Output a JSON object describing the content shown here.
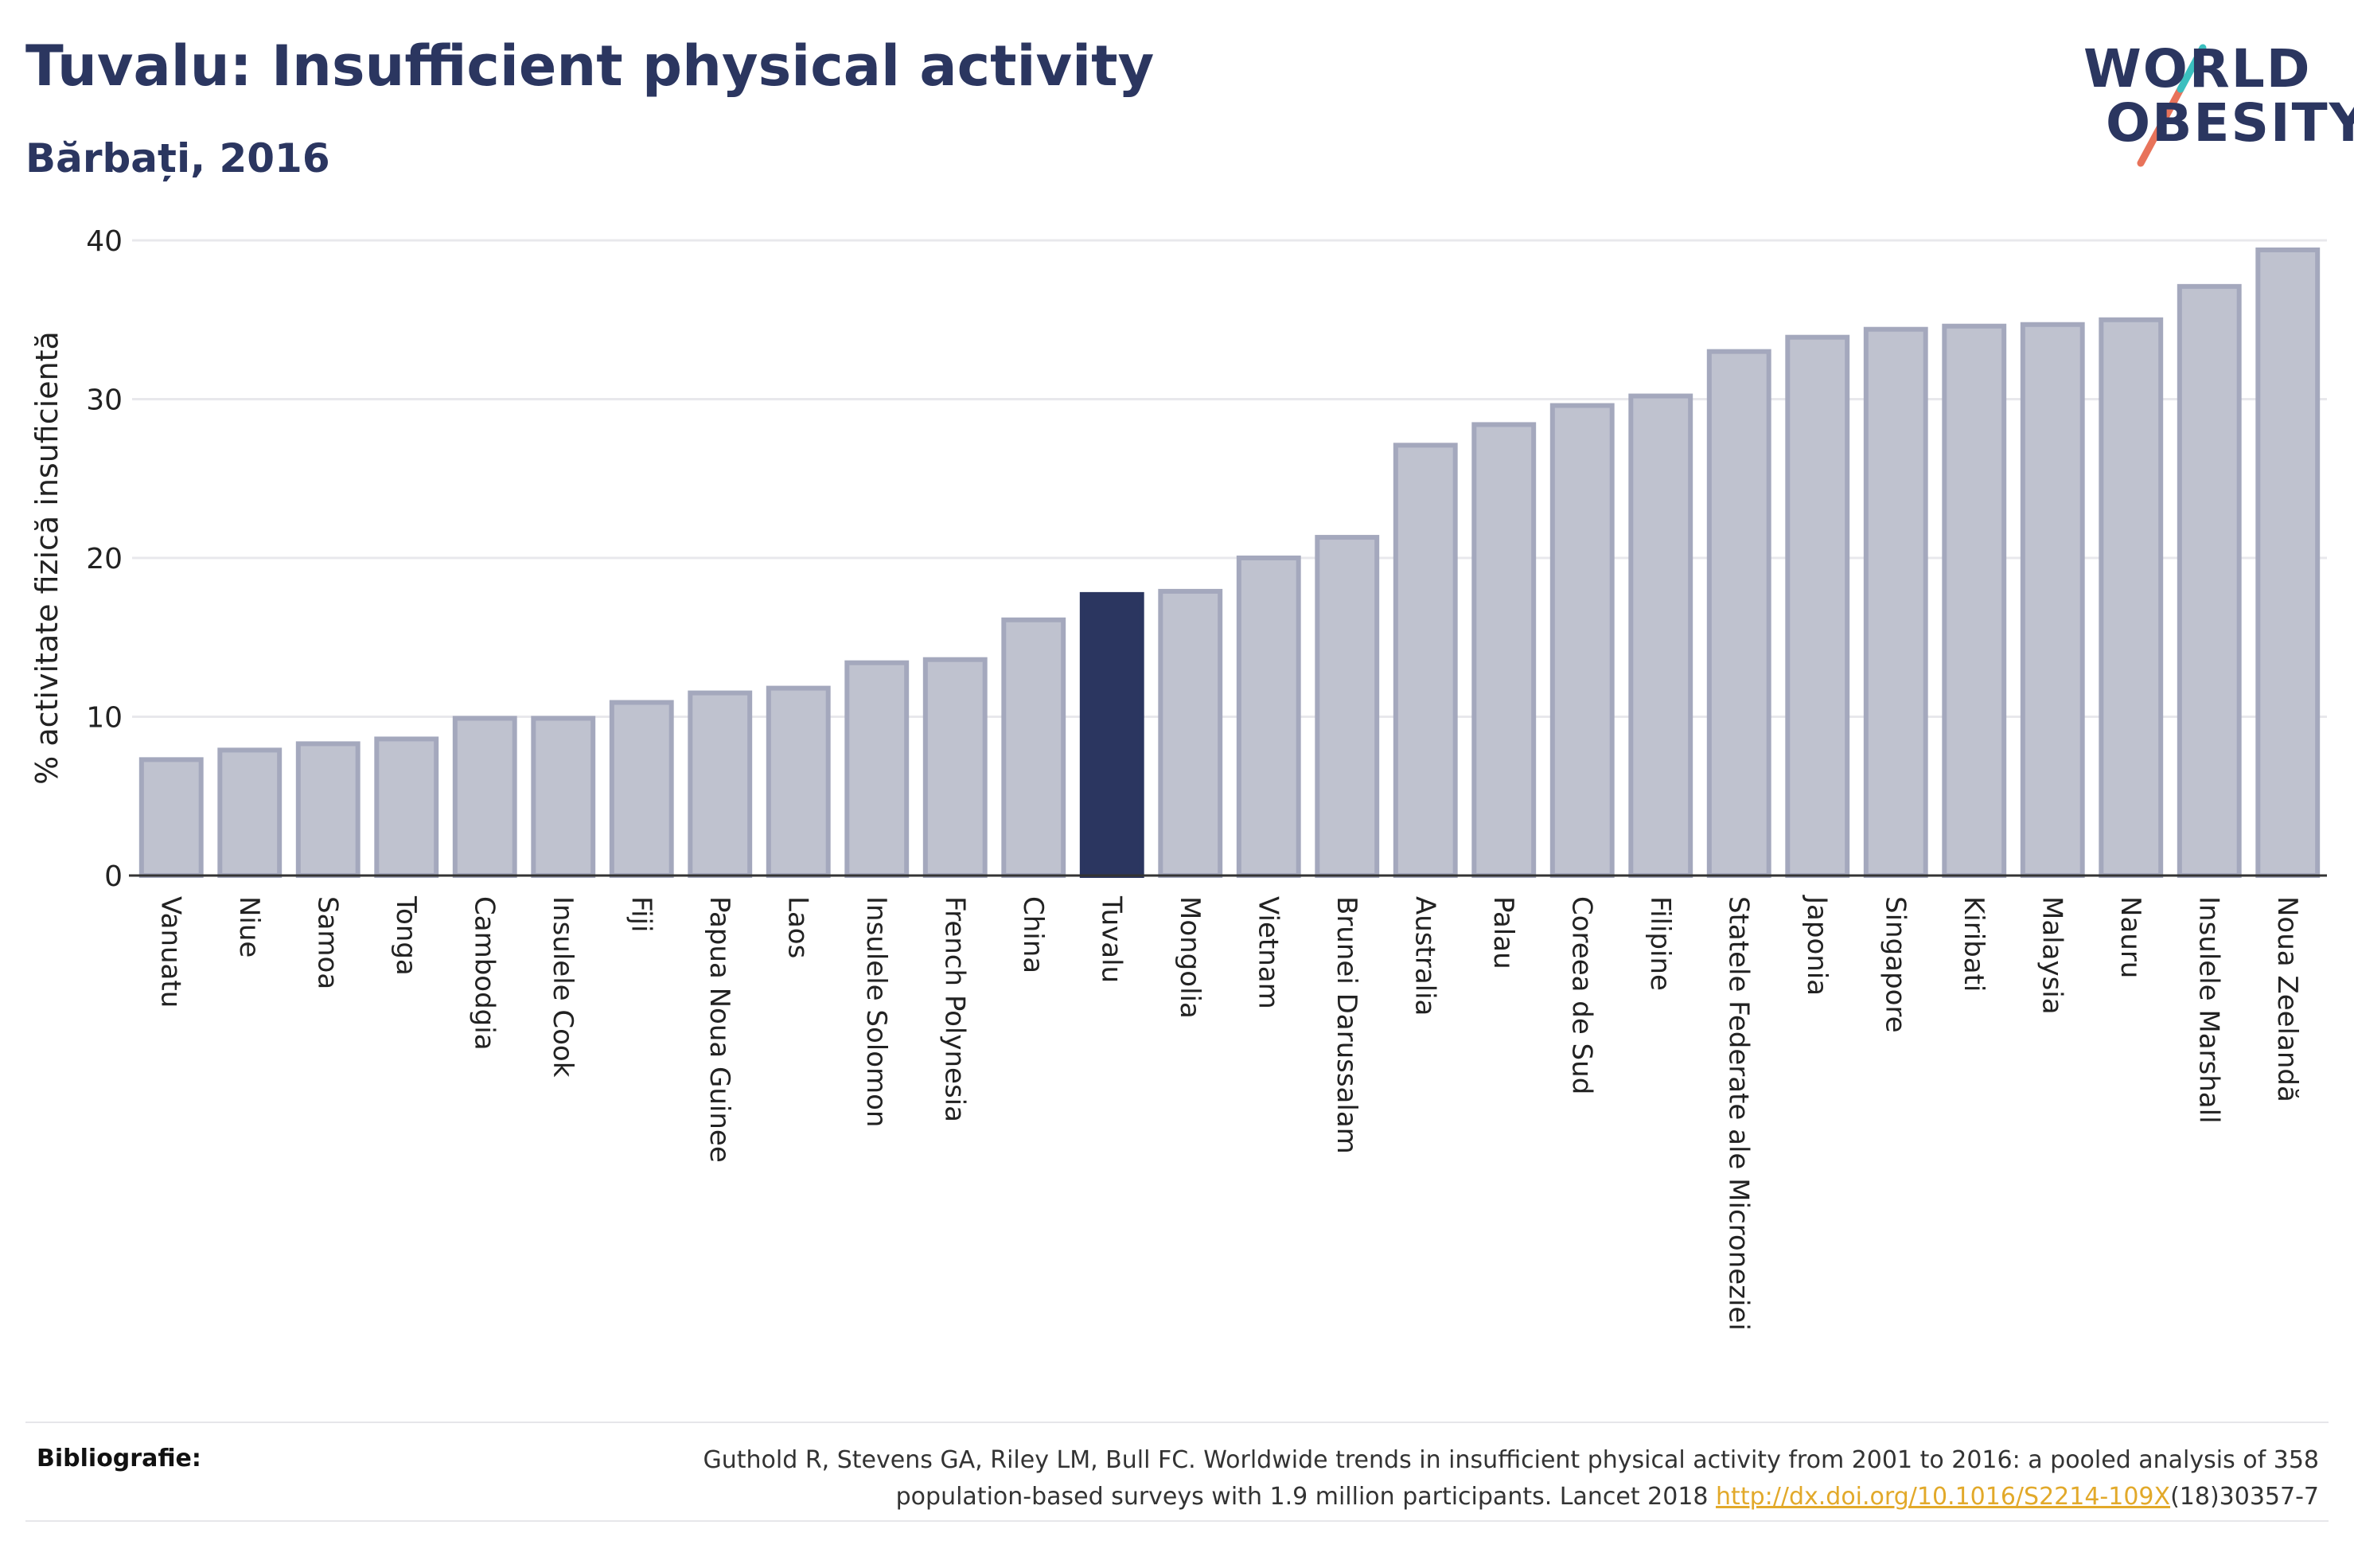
{
  "header": {
    "title": "Tuvalu: Insufficient physical activity",
    "subtitle": "Bărbați, 2016"
  },
  "logo": {
    "line1": "WORLD",
    "line2": "OBESITY",
    "accent_teal": "#3bbfbf",
    "accent_coral": "#e8735a"
  },
  "colors": {
    "bar_default": "#bfc2cf",
    "bar_default_border": "#a4a8bd",
    "bar_highlight": "#2b3660",
    "gridline": "#e8e8ec",
    "axis": "#333333"
  },
  "chart_data": {
    "type": "bar",
    "title": "Tuvalu: Insufficient physical activity",
    "subtitle": "Bărbați, 2016",
    "xlabel": "",
    "ylabel": "% activitate fizică insuficientă",
    "ylim": [
      0,
      40
    ],
    "yticks": [
      0,
      10,
      20,
      30,
      40
    ],
    "grid": true,
    "highlight": "Tuvalu",
    "categories": [
      "Vanuatu",
      "Niue",
      "Samoa",
      "Tonga",
      "Cambodgia",
      "Insulele Cook",
      "Fiji",
      "Papua Noua Guinee",
      "Laos",
      "Insulele Solomon",
      "French Polynesia",
      "China",
      "Tuvalu",
      "Mongolia",
      "Vietnam",
      "Brunei Darussalam",
      "Australia",
      "Palau",
      "Coreea de Sud",
      "Filipine",
      "Statele Federate ale Microneziei",
      "Japonia",
      "Singapore",
      "Kiribati",
      "Malaysia",
      "Nauru",
      "Insulele Marshall",
      "Noua Zeelandă"
    ],
    "values": [
      7.3,
      7.9,
      8.3,
      8.6,
      9.9,
      9.9,
      10.9,
      11.5,
      11.8,
      13.4,
      13.6,
      16.1,
      17.7,
      17.9,
      20.0,
      21.3,
      27.1,
      28.4,
      29.6,
      30.2,
      33.0,
      33.9,
      34.4,
      34.6,
      34.7,
      35.0,
      37.1,
      39.4
    ]
  },
  "footer": {
    "label": "Bibliografie:",
    "citation_line1": "Guthold R, Stevens GA, Riley LM, Bull FC. Worldwide trends in insufficient physical activity from 2001 to 2016: a pooled analysis of 358",
    "citation_line2_pre": "population-based surveys with 1.9 million participants. Lancet 2018 ",
    "citation_link": "http://dx.doi.org/10.1016/S2214-109X",
    "citation_line2_post": "(18)30357-7"
  }
}
